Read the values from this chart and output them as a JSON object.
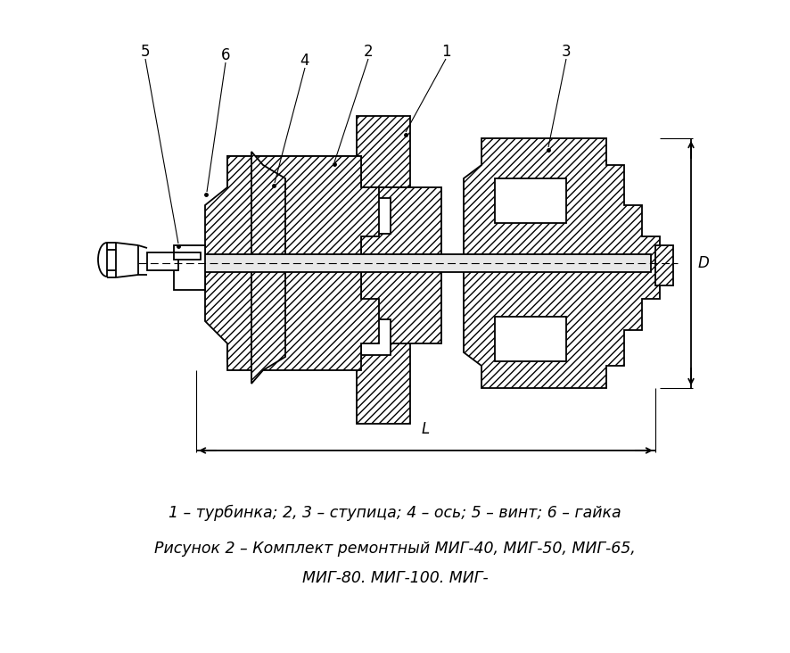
{
  "bg_color": "#ffffff",
  "line_color": "#000000",
  "hatch_pattern": "////",
  "title_line1": "1 – турбинка; 2, 3 – ступица; 4 – ось; 5 – винт; 6 – гайка",
  "title_line2": "Рисунок 2 – Комплект ремонтный МИГ-40, МИГ-50, МИГ-65,",
  "title_line3": "МИГ-80. МИГ-100. МИГ-",
  "label_1": "1",
  "label_2": "2",
  "label_3": "3",
  "label_4": "4",
  "label_5": "5",
  "label_6": "6",
  "dim_D": "D",
  "dim_L": "L"
}
